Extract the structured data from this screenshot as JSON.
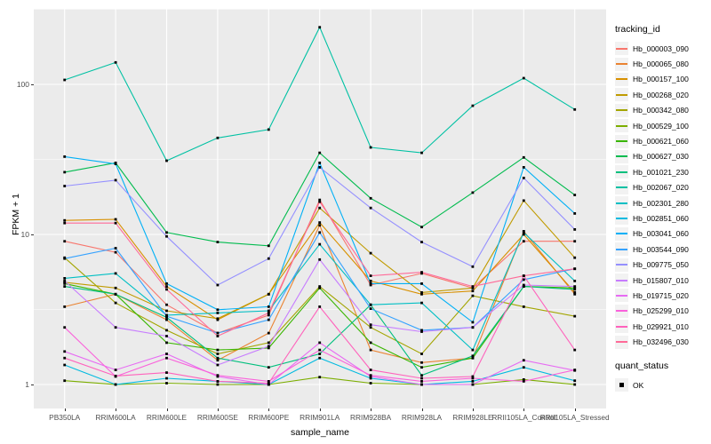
{
  "figure": {
    "panel_background": "#EBEBEB",
    "gridline_color": "#FFFFFF",
    "point_color": "#000000",
    "axis_text_color": "#4D4D4D"
  },
  "chart_data": {
    "type": "line",
    "title": "",
    "xlabel": "sample_name",
    "ylabel": "FPKM + 1",
    "y_scale": "log10",
    "y_ticks": [
      "1",
      "10",
      "100"
    ],
    "y_tick_values": [
      1,
      10,
      100
    ],
    "ylim": [
      1,
      300
    ],
    "grid": "major and minor, white on grey panel",
    "legend_position": "right",
    "legend_title": "tracking_id",
    "legend2_title": "quant_status",
    "legend2_items": [
      "OK"
    ],
    "marker": "black-square",
    "categories": [
      "PB350LA",
      "RRIM600LA",
      "RRIM600LE",
      "RRIM600SE",
      "RRIM600PE",
      "RRIM901LA",
      "RRIM928BA",
      "RRIM928LA",
      "RRIM928LE",
      "RRII105LA_Control",
      "RRII105LA_Stressed"
    ],
    "series": [
      {
        "name": "Hb_000003_090",
        "color": "#F8766D",
        "values": [
          9.0,
          7.6,
          3.4,
          2.2,
          2.9,
          17.0,
          4.6,
          5.5,
          4.4,
          9.0,
          9.0
        ]
      },
      {
        "name": "Hb_000065_080",
        "color": "#EA8331",
        "values": [
          3.3,
          4.0,
          2.7,
          1.45,
          2.2,
          11.5,
          1.7,
          1.4,
          1.5,
          10.5,
          4.0
        ]
      },
      {
        "name": "Hb_000157_100",
        "color": "#D89000",
        "values": [
          12.4,
          12.6,
          4.5,
          2.7,
          4.0,
          12.0,
          4.9,
          4.0,
          4.2,
          10.0,
          4.1
        ]
      },
      {
        "name": "Hb_000268_020",
        "color": "#C09B00",
        "values": [
          4.8,
          4.4,
          3.1,
          2.75,
          4.0,
          15.0,
          7.5,
          4.1,
          4.4,
          16.8,
          7.0
        ]
      },
      {
        "name": "Hb_000342_080",
        "color": "#A3A500",
        "values": [
          7.0,
          3.5,
          2.3,
          1.6,
          1.9,
          4.5,
          2.4,
          1.6,
          3.9,
          3.3,
          2.85
        ]
      },
      {
        "name": "Hb_000529_100",
        "color": "#7CAE00",
        "values": [
          1.06,
          1.0,
          1.02,
          1.0,
          1.0,
          1.12,
          1.02,
          1.0,
          1.0,
          1.08,
          1.0
        ]
      },
      {
        "name": "Hb_000621_060",
        "color": "#39B600",
        "values": [
          4.7,
          4.0,
          1.9,
          1.7,
          1.75,
          4.4,
          1.9,
          1.3,
          1.5,
          4.5,
          4.4
        ]
      },
      {
        "name": "Hb_000627_030",
        "color": "#00BB4E",
        "values": [
          26.0,
          30.0,
          10.3,
          8.9,
          8.4,
          35.0,
          17.4,
          11.2,
          19.0,
          32.6,
          18.3
        ]
      },
      {
        "name": "Hb_001021_230",
        "color": "#00BF7D",
        "values": [
          4.5,
          4.0,
          2.8,
          1.5,
          1.3,
          1.6,
          3.4,
          1.15,
          1.55,
          4.5,
          4.3
        ]
      },
      {
        "name": "Hb_002067_020",
        "color": "#00C1A3",
        "values": [
          107,
          140,
          31,
          44,
          50,
          240,
          38,
          35,
          72,
          110,
          68
        ]
      },
      {
        "name": "Hb_002301_280",
        "color": "#00BFC4",
        "values": [
          5.1,
          5.5,
          2.9,
          3.0,
          3.1,
          8.6,
          3.4,
          3.5,
          1.7,
          10.3,
          4.9
        ]
      },
      {
        "name": "Hb_002851_060",
        "color": "#00BAE0",
        "values": [
          1.35,
          1.0,
          1.1,
          1.05,
          1.0,
          1.5,
          1.1,
          1.0,
          1.05,
          1.3,
          1.06
        ]
      },
      {
        "name": "Hb_003041_060",
        "color": "#00B0F6",
        "values": [
          33,
          29.5,
          4.7,
          3.15,
          3.3,
          30,
          4.7,
          4.7,
          2.6,
          28,
          13.8
        ]
      },
      {
        "name": "Hb_003544_090",
        "color": "#35A2FF",
        "values": [
          6.9,
          8.1,
          2.85,
          2.2,
          2.7,
          10.3,
          3.2,
          2.3,
          2.4,
          5.0,
          5.9
        ]
      },
      {
        "name": "Hb_009775_050",
        "color": "#9590FF",
        "values": [
          21,
          23,
          9.7,
          4.6,
          6.9,
          28,
          15,
          8.9,
          6.1,
          23.8,
          10.8
        ]
      },
      {
        "name": "Hb_015807_010",
        "color": "#C77CFF",
        "values": [
          4.9,
          2.4,
          2.1,
          1.35,
          1.8,
          6.8,
          2.5,
          2.25,
          2.4,
          4.6,
          4.5
        ]
      },
      {
        "name": "Hb_019715_020",
        "color": "#E76BF3",
        "values": [
          1.66,
          1.25,
          1.6,
          1.13,
          1.0,
          1.9,
          1.13,
          1.0,
          1.0,
          1.45,
          1.24
        ]
      },
      {
        "name": "Hb_025299_010",
        "color": "#FA62DB",
        "values": [
          2.4,
          1.13,
          1.5,
          1.15,
          1.05,
          1.7,
          1.15,
          1.05,
          1.1,
          1.05,
          1.25
        ]
      },
      {
        "name": "Hb_029921_010",
        "color": "#FF62BC",
        "values": [
          1.5,
          1.14,
          1.2,
          1.05,
          1.02,
          3.3,
          1.25,
          1.1,
          1.13,
          5.3,
          1.7
        ]
      },
      {
        "name": "Hb_032496_030",
        "color": "#FF6A98",
        "values": [
          11.9,
          11.9,
          4.3,
          2.1,
          3.0,
          16.5,
          5.3,
          5.6,
          4.5,
          5.3,
          5.9
        ]
      }
    ]
  }
}
